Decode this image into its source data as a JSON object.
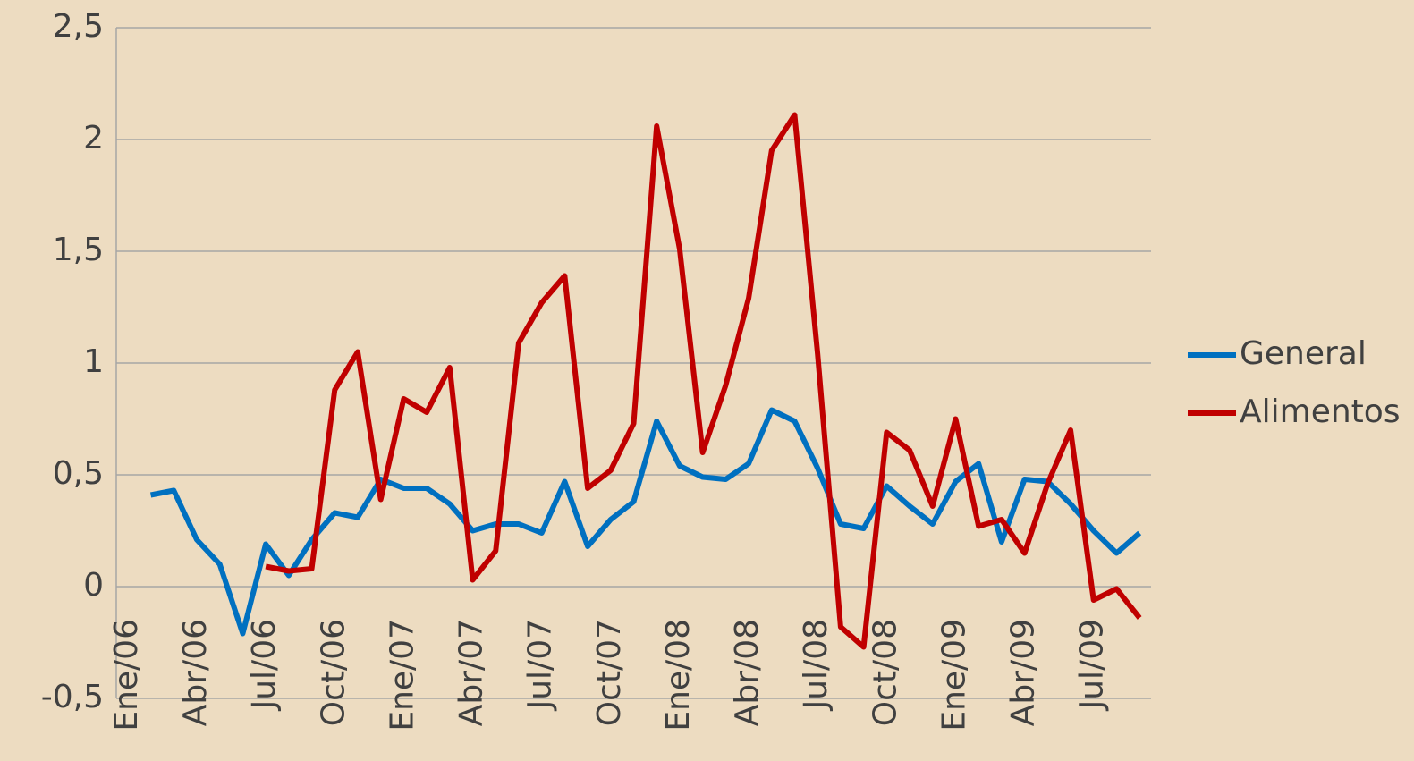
{
  "chart_data": {
    "type": "line",
    "categories": [
      "Ene/06",
      null,
      null,
      "Abr/06",
      null,
      null,
      "Jul/06",
      null,
      null,
      "Oct/06",
      null,
      null,
      "Ene/07",
      null,
      null,
      "Abr/07",
      null,
      null,
      "Jul/07",
      null,
      null,
      "Oct/07",
      null,
      null,
      "Ene/08",
      null,
      null,
      "Abr/08",
      null,
      null,
      "Jul/08",
      null,
      null,
      "Oct/08",
      null,
      null,
      "Ene/09",
      null,
      null,
      "Abr/09",
      null,
      null,
      "Jul/09",
      null,
      null
    ],
    "series": [
      {
        "name": "General",
        "color": "#0070c0",
        "values": [
          null,
          0.41,
          0.43,
          0.21,
          0.1,
          -0.21,
          0.19,
          0.05,
          0.21,
          0.33,
          0.31,
          0.48,
          0.44,
          0.44,
          0.37,
          0.25,
          0.28,
          0.28,
          0.24,
          0.47,
          0.18,
          0.3,
          0.38,
          0.74,
          0.54,
          0.49,
          0.48,
          0.55,
          0.79,
          0.74,
          0.53,
          0.28,
          0.26,
          0.45,
          0.36,
          0.28,
          0.47,
          0.55,
          0.2,
          0.48,
          0.47,
          0.37,
          0.25,
          0.15,
          0.24
        ]
      },
      {
        "name": "Alimentos",
        "color": "#c00000",
        "values": [
          null,
          null,
          null,
          null,
          null,
          null,
          0.09,
          0.07,
          0.08,
          0.88,
          1.05,
          0.39,
          0.84,
          0.78,
          0.98,
          0.03,
          0.16,
          1.09,
          1.27,
          1.39,
          0.44,
          0.52,
          0.73,
          2.06,
          1.51,
          0.6,
          0.9,
          1.29,
          1.95,
          2.11,
          1.04,
          -0.18,
          -0.27,
          0.69,
          0.61,
          0.36,
          0.75,
          0.27,
          0.3,
          0.15,
          0.46,
          0.7,
          -0.06,
          -0.01,
          -0.14
        ]
      }
    ],
    "ylim": [
      -0.5,
      2.5
    ],
    "yticks": [
      {
        "value": -0.5,
        "label": "-0,5"
      },
      0,
      {
        "value": 0.5,
        "label": "0,5"
      },
      1,
      {
        "value": 1.5,
        "label": "1,5"
      },
      2,
      {
        "value": 2.5,
        "label": "2,5"
      }
    ],
    "grid": true,
    "legend": "right"
  }
}
